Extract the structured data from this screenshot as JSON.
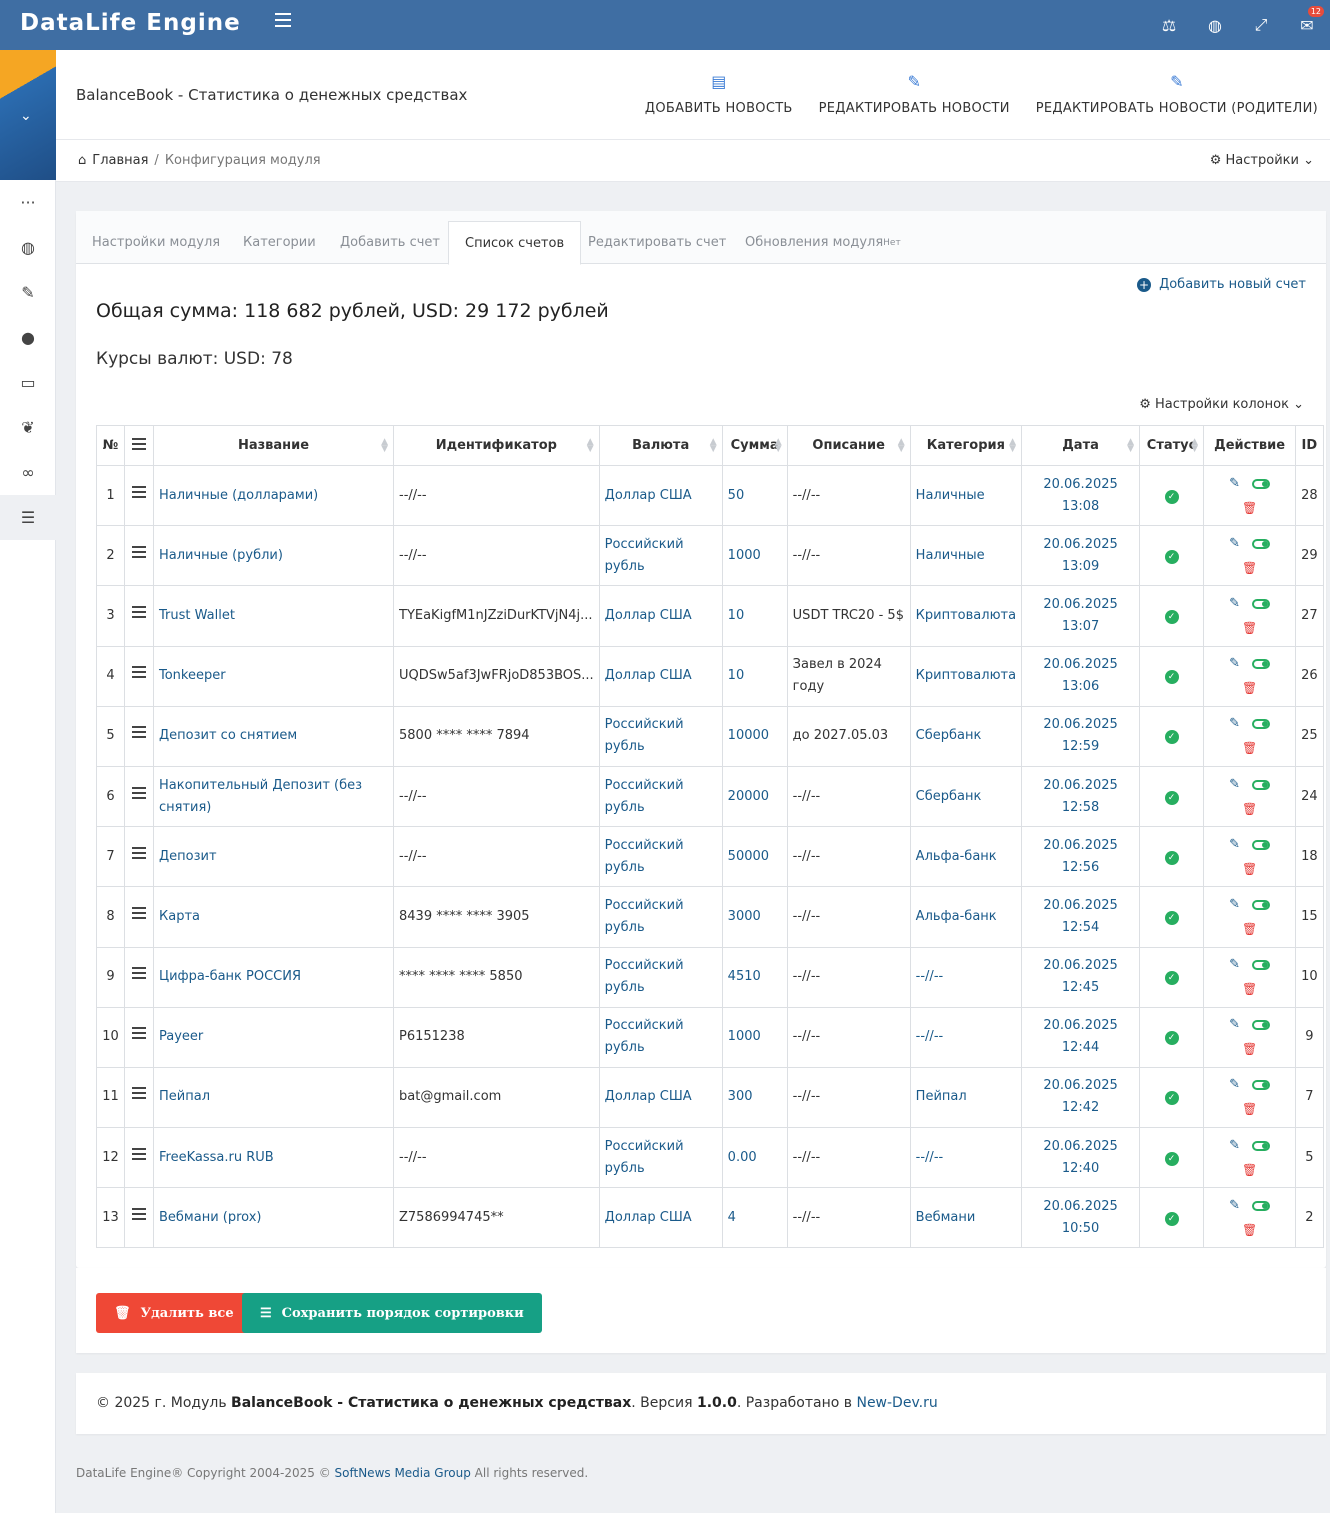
{
  "app": {
    "brand": "DataLife Engine",
    "notifications_count": "12"
  },
  "header": {
    "title": "BalanceBook - Статистика о денежных средствах",
    "actions": [
      {
        "label": "ДОБАВИТЬ НОВОСТЬ",
        "icon": "document-icon"
      },
      {
        "label": "РЕДАКТИРОВАТЬ НОВОСТИ",
        "icon": "edit-icon"
      },
      {
        "label": "РЕДАКТИРОВАТЬ НОВОСТИ (РОДИТЕЛИ)",
        "icon": "edit-icon"
      }
    ]
  },
  "breadcrumb": {
    "home": "Главная",
    "separator": "/",
    "current": "Конфигурация модуля",
    "settings": "Настройки"
  },
  "tabs": [
    {
      "label": "Настройки модуля"
    },
    {
      "label": "Категории"
    },
    {
      "label": "Добавить счет"
    },
    {
      "label": "Список счетов"
    },
    {
      "label": "Редактировать счет"
    },
    {
      "label": "Обновления модуля",
      "sup": "Нет"
    }
  ],
  "main": {
    "add_new": "Добавить новый счет",
    "total": "Общая сумма: 118 682 рублей, USD: 29 172 рублей",
    "rates": "Курсы валют: USD: 78",
    "column_settings": "Настройки колонок"
  },
  "table": {
    "headers": {
      "num": "№",
      "name": "Название",
      "identifier": "Идентификатор",
      "currency": "Валюта",
      "sum": "Сумма",
      "description": "Описание",
      "category": "Категория",
      "date": "Дата",
      "status": "Статус",
      "action": "Действие",
      "id": "ID"
    },
    "rows": [
      {
        "num": "1",
        "name": "Наличные (долларами)",
        "identifier": "--//--",
        "currency": "Доллар США",
        "sum": "50",
        "description": "--//--",
        "category": "Наличные",
        "date": "20.06.2025",
        "time": "13:08",
        "id": "28"
      },
      {
        "num": "2",
        "name": "Наличные (рубли)",
        "identifier": "--//--",
        "currency": "Российский рубль",
        "sum": "1000",
        "description": "--//--",
        "category": "Наличные",
        "date": "20.06.2025",
        "time": "13:09",
        "id": "29"
      },
      {
        "num": "3",
        "name": "Trust Wallet",
        "identifier": "TYEaKigfM1nJZziDurKTVjN4j...",
        "currency": "Доллар США",
        "sum": "10",
        "description": "USDT TRC20 - 5$",
        "category": "Криптовалюта",
        "date": "20.06.2025",
        "time": "13:07",
        "id": "27"
      },
      {
        "num": "4",
        "name": "Tonkeeper",
        "identifier": "UQDSw5af3JwFRjoD853BOS...",
        "currency": "Доллар США",
        "sum": "10",
        "description": "Завел в 2024 году",
        "category": "Криптовалюта",
        "date": "20.06.2025",
        "time": "13:06",
        "id": "26"
      },
      {
        "num": "5",
        "name": "Депозит со снятием",
        "identifier": "5800 **** **** 7894",
        "currency": "Российский рубль",
        "sum": "10000",
        "description": "до 2027.05.03",
        "category": "Сбербанк",
        "date": "20.06.2025",
        "time": "12:59",
        "id": "25"
      },
      {
        "num": "6",
        "name": "Накопительный Депозит (без снятия)",
        "identifier": "--//--",
        "currency": "Российский рубль",
        "sum": "20000",
        "description": "--//--",
        "category": "Сбербанк",
        "date": "20.06.2025",
        "time": "12:58",
        "id": "24"
      },
      {
        "num": "7",
        "name": "Депозит",
        "identifier": "--//--",
        "currency": "Российский рубль",
        "sum": "50000",
        "description": "--//--",
        "category": "Альфа-банк",
        "date": "20.06.2025",
        "time": "12:56",
        "id": "18"
      },
      {
        "num": "8",
        "name": "Карта",
        "identifier": "8439 **** **** 3905",
        "currency": "Российский рубль",
        "sum": "3000",
        "description": "--//--",
        "category": "Альфа-банк",
        "date": "20.06.2025",
        "time": "12:54",
        "id": "15"
      },
      {
        "num": "9",
        "name": "Цифра-банк РОССИЯ",
        "identifier": "**** **** **** 5850",
        "currency": "Российский рубль",
        "sum": "4510",
        "description": "--//--",
        "category": "--//--",
        "date": "20.06.2025",
        "time": "12:45",
        "id": "10"
      },
      {
        "num": "10",
        "name": "Payeer",
        "identifier": "P6151238",
        "currency": "Российский рубль",
        "sum": "1000",
        "description": "--//--",
        "category": "--//--",
        "date": "20.06.2025",
        "time": "12:44",
        "id": "9"
      },
      {
        "num": "11",
        "name": "Пейпал",
        "identifier": "bat@gmail.com",
        "currency": "Доллар США",
        "sum": "300",
        "description": "--//--",
        "category": "Пейпал",
        "date": "20.06.2025",
        "time": "12:42",
        "id": "7"
      },
      {
        "num": "12",
        "name": "FreeKassa.ru RUB",
        "identifier": "--//--",
        "currency": "Российский рубль",
        "sum": "0.00",
        "description": "--//--",
        "category": "--//--",
        "date": "20.06.2025",
        "time": "12:40",
        "id": "5"
      },
      {
        "num": "13",
        "name": "Вебмани (prox)",
        "identifier": "Z7586994745**",
        "currency": "Доллар США",
        "sum": "4",
        "description": "--//--",
        "category": "Вебмани",
        "date": "20.06.2025",
        "time": "10:50",
        "id": "2"
      }
    ]
  },
  "buttons": {
    "delete_all": "Удалить все",
    "save_sort": "Сохранить порядок сортировки"
  },
  "footer": {
    "prefix": "© 2025 г. Модуль ",
    "module_name": "BalanceBook - Статистика о денежных средствах",
    "version_label": ". Версия ",
    "version": "1.0.0",
    "dev_label": ". Разработано в ",
    "dev_link": "New-Dev.ru"
  },
  "copyright": {
    "prefix": "DataLife Engine® Copyright 2004-2025 © ",
    "company": "SoftNews Media Group",
    "suffix": " All rights reserved."
  },
  "colors": {
    "topbar": "#3f6ea3",
    "link": "#1a5a8a",
    "status_ok": "#27ae60",
    "danger": "#ef4836",
    "success_btn": "#16a085"
  }
}
